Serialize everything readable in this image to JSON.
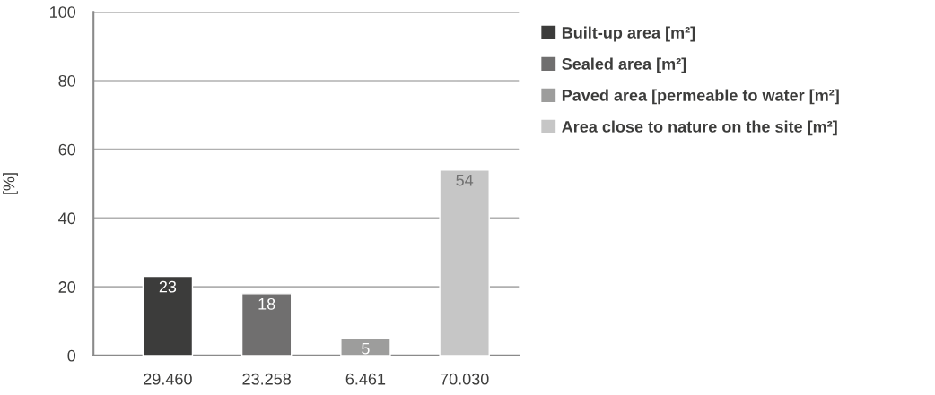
{
  "chart_data": {
    "type": "bar",
    "ylabel": "[%]",
    "categories": [
      "29.460",
      "23.258",
      "6.461",
      "70.030"
    ],
    "series": [
      {
        "name": "Built-up area [m²]",
        "color": "#3c3c3b",
        "values": [
          23,
          null,
          null,
          null
        ]
      },
      {
        "name": "Sealed area [m²]",
        "color": "#706f6f",
        "values": [
          null,
          18,
          null,
          null
        ]
      },
      {
        "name": "Paved area [permeable to water [m²]",
        "color": "#9d9d9c",
        "values": [
          null,
          null,
          5,
          null
        ]
      },
      {
        "name": "Area close to nature on the site [m²]",
        "color": "#c6c6c6",
        "values": [
          null,
          null,
          null,
          54
        ]
      }
    ],
    "ylim": [
      0,
      100
    ],
    "yticks": [
      0,
      20,
      40,
      60,
      80,
      100
    ],
    "grid": "y",
    "legend": "top right",
    "data_labels": true
  }
}
